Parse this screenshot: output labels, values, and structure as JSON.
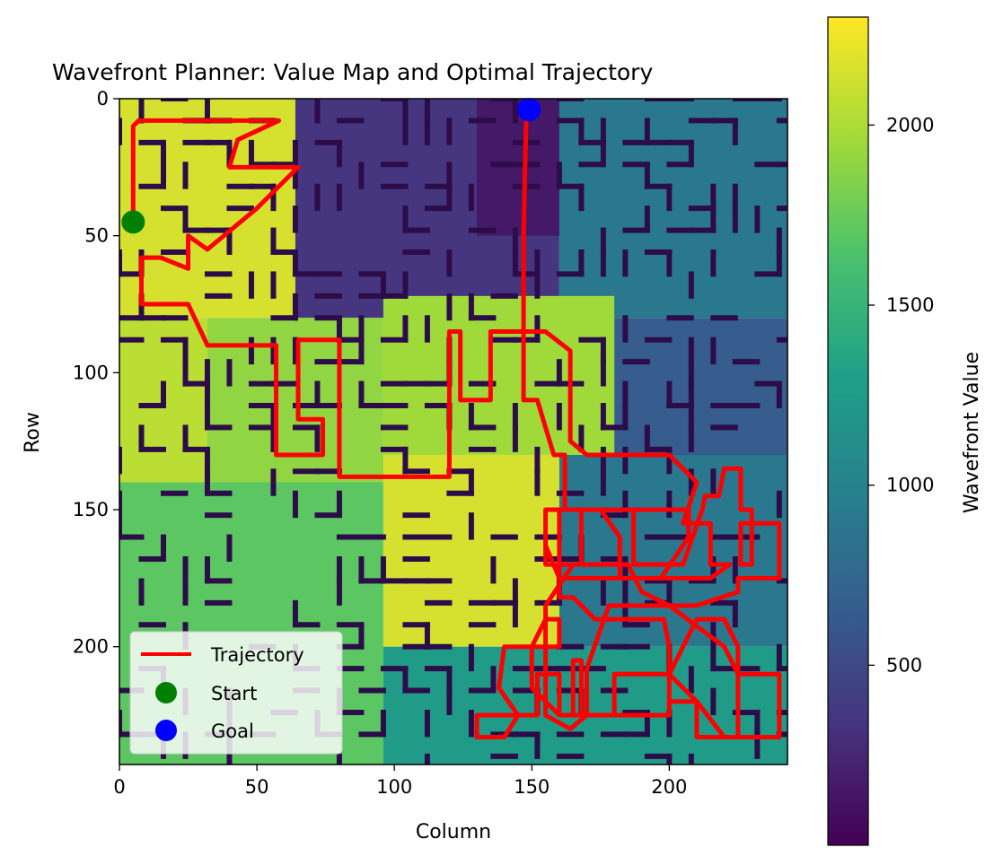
{
  "chart_data": {
    "type": "heatmap",
    "title": "Wavefront Planner: Value Map and Optimal Trajectory",
    "xlabel": "Column",
    "ylabel": "Row",
    "xlim": [
      0,
      243
    ],
    "ylim": [
      243,
      0
    ],
    "x_ticks": [
      "0",
      "50",
      "100",
      "150",
      "200"
    ],
    "y_ticks": [
      "0",
      "50",
      "100",
      "150",
      "200"
    ],
    "colormap": "viridis",
    "colorbar": {
      "label": "Wavefront Value",
      "range": [
        0,
        2300
      ],
      "ticks": [
        "500",
        "1000",
        "1500",
        "2000"
      ]
    },
    "regions": [
      {
        "x": [
          0,
          64
        ],
        "y": [
          0,
          80
        ],
        "value": 2150
      },
      {
        "x": [
          64,
          160
        ],
        "y": [
          0,
          80
        ],
        "value": 350
      },
      {
        "x": [
          130,
          170
        ],
        "y": [
          0,
          50
        ],
        "value": 150
      },
      {
        "x": [
          160,
          243
        ],
        "y": [
          0,
          80
        ],
        "value": 900
      },
      {
        "x": [
          0,
          32
        ],
        "y": [
          80,
          150
        ],
        "value": 2050
      },
      {
        "x": [
          32,
          96
        ],
        "y": [
          80,
          140
        ],
        "value": 1900
      },
      {
        "x": [
          96,
          180
        ],
        "y": [
          72,
          130
        ],
        "value": 1950
      },
      {
        "x": [
          180,
          243
        ],
        "y": [
          80,
          180
        ],
        "value": 650
      },
      {
        "x": [
          0,
          96
        ],
        "y": [
          140,
          243
        ],
        "value": 1700
      },
      {
        "x": [
          96,
          160
        ],
        "y": [
          130,
          200
        ],
        "value": 2150
      },
      {
        "x": [
          160,
          243
        ],
        "y": [
          130,
          200
        ],
        "value": 900
      },
      {
        "x": [
          96,
          243
        ],
        "y": [
          200,
          243
        ],
        "value": 1250
      }
    ],
    "series": [
      {
        "name": "Trajectory",
        "color": "#ff0000",
        "x": [
          5,
          5,
          7,
          58,
          43,
          40,
          65,
          50,
          32,
          25,
          25,
          15,
          8,
          8,
          25,
          32,
          57,
          57,
          63,
          74,
          74,
          65,
          65,
          70,
          80,
          80,
          85,
          90,
          110,
          120,
          120,
          124,
          124,
          135,
          135,
          155,
          164,
          164,
          170,
          200,
          210,
          205,
          215,
          215,
          222,
          215,
          160,
          155,
          155,
          175,
          182,
          182,
          197,
          207,
          207,
          165,
          160,
          160,
          168,
          168,
          172,
          176,
          187,
          187,
          205,
          212,
          213,
          218,
          220,
          226,
          226,
          230,
          230,
          226,
          226,
          240,
          240,
          225,
          225,
          210,
          200,
          190,
          185,
          165,
          155,
          155,
          155,
          164,
          170,
          180,
          180,
          200,
          210,
          210,
          225,
          225,
          220,
          210,
          205,
          200,
          200,
          180,
          168,
          168,
          165,
          165,
          160,
          160,
          152,
          152,
          130,
          130,
          140,
          145,
          138,
          140,
          160,
          160,
          155,
          150,
          150,
          160,
          170,
          170,
          178,
          200,
          220,
          225,
          240,
          240,
          230,
          220,
          210,
          200,
          200,
          198,
          192,
          180,
          173,
          165,
          160,
          160,
          155,
          155,
          162,
          162,
          158,
          152,
          147,
          147,
          148
        ],
        "y": [
          45,
          10,
          8,
          8,
          15,
          25,
          25,
          40,
          55,
          50,
          62,
          58,
          58,
          75,
          75,
          90,
          90,
          130,
          130,
          130,
          117,
          117,
          88,
          88,
          88,
          138,
          138,
          138,
          138,
          138,
          85,
          85,
          110,
          110,
          85,
          85,
          92,
          125,
          130,
          130,
          140,
          155,
          155,
          170,
          170,
          175,
          175,
          163,
          150,
          150,
          160,
          175,
          175,
          160,
          150,
          150,
          150,
          170,
          170,
          150,
          150,
          150,
          150,
          170,
          170,
          150,
          145,
          145,
          135,
          135,
          150,
          150,
          170,
          170,
          155,
          155,
          175,
          175,
          180,
          185,
          185,
          180,
          170,
          170,
          185,
          200,
          225,
          230,
          225,
          225,
          210,
          210,
          220,
          233,
          233,
          200,
          190,
          190,
          200,
          210,
          225,
          225,
          225,
          205,
          205,
          225,
          225,
          210,
          210,
          225,
          225,
          233,
          233,
          225,
          215,
          200,
          200,
          190,
          190,
          200,
          215,
          225,
          225,
          208,
          185,
          185,
          200,
          210,
          210,
          233,
          233,
          233,
          220,
          220,
          200,
          190,
          190,
          190,
          190,
          182,
          182,
          170,
          170,
          150,
          150,
          130,
          130,
          110,
          110,
          50,
          5
        ]
      }
    ],
    "points": [
      {
        "name": "Start",
        "x": 5,
        "y": 45,
        "color": "#008000"
      },
      {
        "name": "Goal",
        "x": 149,
        "y": 4,
        "color": "#0000ff"
      }
    ],
    "legend": {
      "placement": "lower-left",
      "entries": [
        "Trajectory",
        "Start",
        "Goal"
      ]
    }
  }
}
